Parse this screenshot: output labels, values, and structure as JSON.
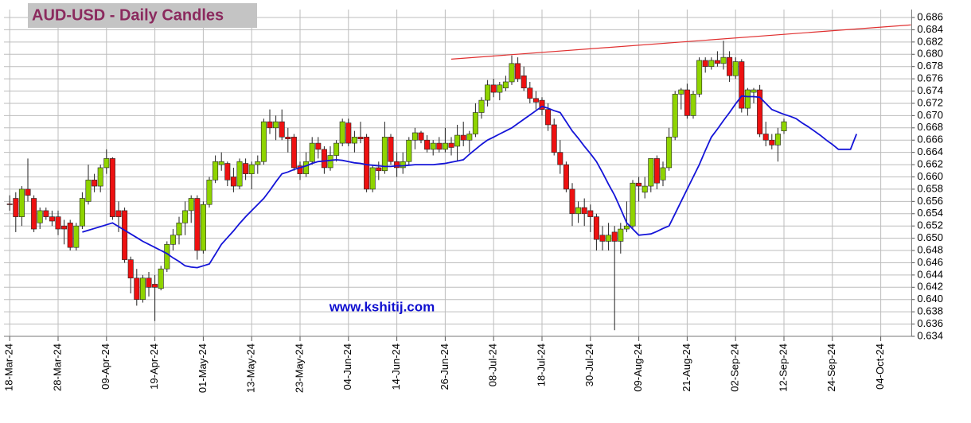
{
  "chart_data": {
    "type": "candlestick",
    "title": "AUD-USD - Daily Candles",
    "annotation": "www.kshitij.com",
    "categories": [
      "18-Mar-24",
      null,
      null,
      null,
      null,
      null,
      null,
      null,
      "28-Mar-24",
      null,
      null,
      null,
      null,
      null,
      null,
      null,
      "09-Apr-24",
      null,
      null,
      null,
      null,
      null,
      null,
      null,
      "19-Apr-24",
      null,
      null,
      null,
      null,
      null,
      null,
      null,
      "01-May-24",
      null,
      null,
      null,
      null,
      null,
      null,
      null,
      "13-May-24",
      null,
      null,
      null,
      null,
      null,
      null,
      null,
      "23-May-24",
      null,
      null,
      null,
      null,
      null,
      null,
      null,
      "04-Jun-24",
      null,
      null,
      null,
      null,
      null,
      null,
      null,
      "14-Jun-24",
      null,
      null,
      null,
      null,
      null,
      null,
      null,
      "26-Jun-24",
      null,
      null,
      null,
      null,
      null,
      null,
      null,
      "08-Jul-24",
      null,
      null,
      null,
      null,
      null,
      null,
      null,
      "18-Jul-24",
      null,
      null,
      null,
      null,
      null,
      null,
      null,
      "30-Jul-24",
      null,
      null,
      null,
      null,
      null,
      null,
      null,
      "09-Aug-24",
      null,
      null,
      null,
      null,
      null,
      null,
      null,
      "21-Aug-24",
      null,
      null,
      null,
      null,
      null,
      null,
      null,
      "02-Sep-24",
      null,
      null,
      null,
      null,
      null,
      null,
      null,
      "12-Sep-24",
      null,
      null,
      null,
      null,
      null,
      null,
      null,
      "24-Sep-24",
      null,
      null,
      null,
      null,
      null,
      null,
      null,
      "04-Oct-24",
      null,
      null,
      null,
      null,
      null
    ],
    "open": [
      0.6556,
      0.6565,
      0.6535,
      0.658,
      0.6565,
      0.6525,
      0.6545,
      0.6535,
      0.6535,
      0.652,
      0.6525,
      0.6485,
      0.652,
      0.656,
      0.6595,
      0.6585,
      0.6615,
      0.663,
      0.6545,
      0.6545,
      0.6465,
      0.6435,
      0.64,
      0.6435,
      0.6425,
      0.6418,
      0.645,
      0.649,
      0.6505,
      0.6525,
      0.6545,
      0.6565,
      0.648,
      0.6555,
      0.6595,
      0.662,
      0.6622,
      0.66,
      0.6585,
      0.6622,
      0.6605,
      0.662,
      0.6625,
      0.669,
      0.668,
      0.669,
      0.6665,
      0.6665,
      0.6618,
      0.6605,
      0.6625,
      0.6655,
      0.6645,
      0.6615,
      0.6635,
      0.6655,
      0.6688,
      0.6655,
      0.6665,
      0.6665,
      0.658,
      0.6615,
      0.661,
      0.6665,
      0.6625,
      0.6615,
      0.6625,
      0.666,
      0.6672,
      0.666,
      0.6645,
      0.6655,
      0.6645,
      0.6655,
      0.665,
      0.6668,
      0.666,
      0.667,
      0.6705,
      0.6725,
      0.675,
      0.6738,
      0.6745,
      0.6755,
      0.6785,
      0.6765,
      0.6745,
      0.6728,
      0.6725,
      0.671,
      0.6685,
      0.664,
      0.662,
      0.658,
      0.654,
      0.655,
      0.6545,
      0.6535,
      0.6505,
      0.6495,
      0.651,
      0.6495,
      0.6515,
      0.652,
      0.659,
      0.6575,
      0.6585,
      0.663,
      0.6595,
      0.6615,
      0.6665,
      0.6735,
      0.6742,
      0.67,
      0.6735,
      0.679,
      0.678,
      0.679,
      0.6785,
      0.6795,
      0.6765,
      0.6788,
      0.6712,
      0.6738,
      0.6742,
      0.667,
      0.666,
      0.6652,
      0.6675,
      null,
      null,
      null,
      null,
      null,
      null,
      null,
      null,
      null,
      null,
      null,
      null,
      null,
      null,
      null,
      null,
      null,
      null,
      null,
      null,
      null
    ],
    "high": [
      0.657,
      0.6575,
      0.6585,
      0.663,
      0.657,
      0.655,
      0.655,
      0.6545,
      0.6545,
      0.653,
      0.653,
      0.6525,
      0.6575,
      0.662,
      0.6605,
      0.662,
      0.6645,
      0.6632,
      0.656,
      0.655,
      0.647,
      0.645,
      0.644,
      0.6445,
      0.644,
      0.6455,
      0.6495,
      0.6515,
      0.6535,
      0.656,
      0.657,
      0.657,
      0.656,
      0.66,
      0.6635,
      0.664,
      0.6625,
      0.6615,
      0.663,
      0.663,
      0.6625,
      0.6635,
      0.6695,
      0.671,
      0.67,
      0.671,
      0.668,
      0.667,
      0.6625,
      0.664,
      0.6665,
      0.6665,
      0.665,
      0.665,
      0.666,
      0.6695,
      0.6695,
      0.6675,
      0.669,
      0.667,
      0.662,
      0.6625,
      0.669,
      0.667,
      0.664,
      0.664,
      0.6665,
      0.668,
      0.6675,
      0.6668,
      0.666,
      0.6665,
      0.668,
      0.6665,
      0.6685,
      0.669,
      0.6675,
      0.672,
      0.673,
      0.6758,
      0.676,
      0.6755,
      0.6765,
      0.6798,
      0.6795,
      0.678,
      0.6755,
      0.674,
      0.673,
      0.672,
      0.6695,
      0.666,
      0.6625,
      0.659,
      0.656,
      0.6565,
      0.6555,
      0.654,
      0.652,
      0.6525,
      0.652,
      0.6525,
      0.656,
      0.6595,
      0.66,
      0.66,
      0.663,
      0.6635,
      0.6625,
      0.668,
      0.674,
      0.6745,
      0.6752,
      0.674,
      0.6795,
      0.6795,
      0.6795,
      0.6805,
      0.6822,
      0.6805,
      0.6795,
      0.6792,
      0.6745,
      0.6745,
      0.675,
      0.669,
      0.667,
      0.668,
      0.6695,
      null,
      null,
      null,
      null,
      null,
      null,
      null,
      null,
      null,
      null,
      null,
      null,
      null,
      null,
      null,
      null,
      null,
      null,
      null,
      null,
      null
    ],
    "low": [
      0.6545,
      0.651,
      0.652,
      0.656,
      0.651,
      0.6515,
      0.653,
      0.652,
      0.6505,
      0.649,
      0.648,
      0.648,
      0.6515,
      0.6555,
      0.6575,
      0.6575,
      0.6605,
      0.653,
      0.651,
      0.646,
      0.641,
      0.639,
      0.6395,
      0.6405,
      0.6365,
      0.6415,
      0.6445,
      0.648,
      0.649,
      0.6505,
      0.6525,
      0.6465,
      0.6475,
      0.655,
      0.659,
      0.661,
      0.6585,
      0.6575,
      0.658,
      0.6595,
      0.658,
      0.6605,
      0.662,
      0.667,
      0.666,
      0.666,
      0.664,
      0.661,
      0.6595,
      0.66,
      0.662,
      0.663,
      0.6605,
      0.661,
      0.6625,
      0.665,
      0.665,
      0.664,
      0.6655,
      0.6575,
      0.6575,
      0.6595,
      0.6605,
      0.662,
      0.66,
      0.6605,
      0.662,
      0.6645,
      0.6655,
      0.664,
      0.6635,
      0.664,
      0.664,
      0.6635,
      0.6625,
      0.665,
      0.664,
      0.6665,
      0.6695,
      0.6715,
      0.673,
      0.6725,
      0.674,
      0.675,
      0.6755,
      0.674,
      0.672,
      0.671,
      0.67,
      0.6675,
      0.6635,
      0.6605,
      0.6575,
      0.652,
      0.6525,
      0.652,
      0.651,
      0.648,
      0.648,
      0.648,
      0.635,
      0.6475,
      0.651,
      0.6515,
      0.656,
      0.6565,
      0.6575,
      0.658,
      0.6585,
      0.661,
      0.666,
      0.671,
      0.6695,
      0.6695,
      0.673,
      0.677,
      0.6775,
      0.678,
      0.6775,
      0.6755,
      0.676,
      0.6705,
      0.67,
      0.672,
      0.6665,
      0.665,
      0.6645,
      0.6625,
      0.667,
      null,
      null,
      null,
      null,
      null,
      null,
      null,
      null,
      null,
      null,
      null,
      null,
      null,
      null,
      null,
      null,
      null,
      null,
      null,
      null,
      null
    ],
    "close": [
      0.6555,
      0.6535,
      0.658,
      0.657,
      0.6515,
      0.6545,
      0.6535,
      0.6528,
      0.6515,
      0.6515,
      0.6485,
      0.652,
      0.6565,
      0.6595,
      0.6585,
      0.6615,
      0.663,
      0.6535,
      0.6535,
      0.6465,
      0.6435,
      0.64,
      0.6435,
      0.642,
      0.642,
      0.645,
      0.649,
      0.6505,
      0.6525,
      0.6545,
      0.6565,
      0.648,
      0.6555,
      0.6595,
      0.6625,
      0.6625,
      0.6595,
      0.6585,
      0.6625,
      0.6605,
      0.662,
      0.6625,
      0.669,
      0.668,
      0.669,
      0.6665,
      0.6662,
      0.6615,
      0.6605,
      0.6625,
      0.6655,
      0.6645,
      0.6615,
      0.6635,
      0.6655,
      0.669,
      0.6655,
      0.6665,
      0.6662,
      0.658,
      0.6615,
      0.661,
      0.6665,
      0.6625,
      0.6615,
      0.6625,
      0.666,
      0.6672,
      0.666,
      0.6645,
      0.6655,
      0.6645,
      0.6655,
      0.6648,
      0.6668,
      0.666,
      0.667,
      0.6705,
      0.6725,
      0.675,
      0.6738,
      0.675,
      0.6755,
      0.6785,
      0.676,
      0.6745,
      0.6728,
      0.6722,
      0.671,
      0.6685,
      0.664,
      0.662,
      0.658,
      0.654,
      0.655,
      0.654,
      0.6535,
      0.6498,
      0.6495,
      0.6505,
      0.6495,
      0.6515,
      0.652,
      0.659,
      0.6585,
      0.6585,
      0.663,
      0.659,
      0.6615,
      0.6665,
      0.6735,
      0.6742,
      0.67,
      0.6735,
      0.679,
      0.678,
      0.679,
      0.6785,
      0.6795,
      0.6765,
      0.6788,
      0.6712,
      0.6742,
      0.6742,
      0.667,
      0.666,
      0.6652,
      0.667,
      0.669,
      null,
      null,
      null,
      null,
      null,
      null,
      null,
      null,
      null,
      null,
      null,
      null,
      null,
      null,
      null,
      null,
      null,
      null,
      null,
      null,
      null
    ],
    "up_color": "#8fd400",
    "down_color": "#ee1111",
    "moving_average": {
      "color": "#1414d8",
      "values": [
        null,
        null,
        null,
        null,
        null,
        null,
        null,
        null,
        null,
        null,
        null,
        null,
        0.651,
        0.6513,
        0.6516,
        0.6519,
        0.6522,
        0.6525,
        0.6519,
        0.6513,
        0.6507,
        0.6501,
        0.6495,
        0.649,
        0.6485,
        0.648,
        0.6475,
        0.6468,
        0.6462,
        0.6455,
        0.6453,
        0.6452,
        0.6455,
        0.6458,
        0.6474,
        0.649,
        0.6501,
        0.6512,
        0.6524,
        0.6535,
        0.6545,
        0.6555,
        0.6565,
        0.6578,
        0.6592,
        0.6605,
        0.6608,
        0.6612,
        0.6615,
        0.6618,
        0.6622,
        0.6625,
        0.6626,
        0.6627,
        0.6628,
        0.6627,
        0.6625,
        0.6623,
        0.6622,
        0.662,
        0.6619,
        0.6618,
        0.6617,
        0.6617,
        0.6618,
        0.6618,
        0.6619,
        0.662,
        0.662,
        0.662,
        0.662,
        0.6621,
        0.6622,
        0.6624,
        0.6626,
        0.6628,
        0.6637,
        0.6645,
        0.6653,
        0.666,
        0.6665,
        0.667,
        0.6675,
        0.668,
        0.6687,
        0.6694,
        0.6701,
        0.6708,
        0.6715,
        0.6712,
        0.6708,
        0.6705,
        0.669,
        0.6675,
        0.6663,
        0.665,
        0.6638,
        0.6625,
        0.6607,
        0.6588,
        0.657,
        0.6548,
        0.6525,
        0.6515,
        0.6505,
        0.6506,
        0.6507,
        0.6511,
        0.6516,
        0.652,
        0.654,
        0.656,
        0.658,
        0.66,
        0.662,
        0.6643,
        0.6665,
        0.6678,
        0.6692,
        0.6705,
        0.6719,
        0.6732,
        0.6731,
        0.6731,
        0.673,
        0.672,
        0.671,
        0.6706,
        0.6702,
        0.6699,
        0.6695,
        0.6688,
        0.6682,
        0.6675,
        0.6668,
        0.666,
        0.6653,
        0.6645,
        0.6645,
        0.6645,
        0.667,
        null,
        null,
        null,
        null,
        null,
        null,
        null,
        null,
        null
      ]
    },
    "trendline": {
      "color": "#e03030",
      "x": [
        73,
        149
      ],
      "values": [
        0.6792,
        0.6848
      ]
    },
    "ylim": [
      0.634,
      0.686
    ],
    "yticks": [
      0.634,
      0.636,
      0.638,
      {
        "value": 0.64,
        "label": "0.640"
      },
      0.642,
      0.644,
      0.646,
      0.648,
      {
        "value": 0.65,
        "label": "0.650"
      },
      0.652,
      0.654,
      0.656,
      0.658,
      {
        "value": 0.66,
        "label": "0.660"
      },
      0.662,
      0.664,
      0.666,
      0.668,
      {
        "value": 0.67,
        "label": "0.670"
      },
      0.672,
      0.674,
      0.676,
      0.678,
      {
        "value": 0.68,
        "label": "0.680"
      },
      0.682,
      0.684,
      0.686
    ],
    "grid": true
  }
}
